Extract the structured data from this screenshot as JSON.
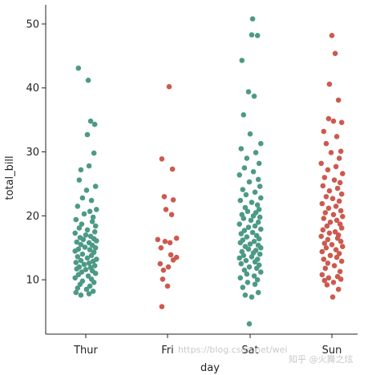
{
  "watermark": {
    "left": "https://blog.csdn.net/wei",
    "right": "知乎 @火舞之炫"
  },
  "colors": {
    "Thur": "#4c9a86",
    "Fri": "#cc5a4f",
    "Sat": "#4c9a86",
    "Sun": "#cc5a4f",
    "axis": "#222222"
  },
  "chart_data": {
    "type": "scatter",
    "xlabel": "day",
    "ylabel": "total_bill",
    "categories": [
      "Thur",
      "Fri",
      "Sat",
      "Sun"
    ],
    "ylim": [
      1.5,
      53
    ],
    "yticks": [
      10,
      20,
      30,
      40,
      50
    ],
    "grid": false,
    "legend": "none",
    "series": [
      {
        "category": "Thur",
        "values": [
          43.1,
          41.2,
          34.8,
          34.3,
          32.7,
          29.8,
          27.8,
          27.2,
          25.6,
          24.6,
          24.0,
          22.8,
          22.4,
          21.5,
          21.0,
          20.7,
          20.3,
          19.8,
          19.4,
          19.1,
          18.7,
          18.4,
          18.1,
          17.8,
          17.5,
          17.3,
          17.0,
          16.8,
          16.6,
          16.4,
          16.3,
          16.1,
          15.9,
          15.8,
          15.5,
          15.4,
          15.1,
          15.0,
          14.8,
          14.7,
          14.5,
          14.3,
          14.0,
          13.8,
          13.6,
          13.4,
          13.2,
          13.0,
          12.9,
          12.7,
          12.6,
          12.4,
          12.2,
          12.0,
          11.9,
          11.7,
          11.6,
          11.4,
          11.2,
          11.0,
          10.8,
          10.6,
          10.3,
          10.1,
          9.8,
          9.6,
          9.3,
          9.0,
          8.7,
          8.5,
          8.2,
          8.0,
          7.8,
          7.6
        ],
        "jitter": [
          -0.09,
          0.03,
          0.06,
          0.11,
          0.02,
          0.1,
          0.04,
          -0.06,
          -0.08,
          0.12,
          0.01,
          -0.04,
          0.07,
          -0.1,
          0.13,
          0.05,
          -0.02,
          0.09,
          -0.12,
          0.08,
          -0.05,
          0.12,
          -0.08,
          0.02,
          0.11,
          -0.13,
          0.0,
          0.06,
          -0.07,
          0.1,
          -0.03,
          0.13,
          -0.11,
          0.04,
          -0.06,
          0.08,
          -0.01,
          0.12,
          -0.09,
          0.05,
          -0.13,
          0.1,
          -0.04,
          0.07,
          -0.1,
          0.02,
          0.13,
          -0.06,
          0.09,
          -0.12,
          0.04,
          -0.02,
          0.11,
          -0.08,
          0.06,
          -0.11,
          0.0,
          0.08,
          -0.05,
          0.12,
          -0.09,
          0.03,
          -0.13,
          0.07,
          -0.04,
          0.1,
          -0.07,
          0.05,
          -0.1,
          0.01,
          0.09,
          -0.12,
          0.04,
          -0.06
        ]
      },
      {
        "category": "Fri",
        "values": [
          40.2,
          28.9,
          27.3,
          23.0,
          22.5,
          21.0,
          20.2,
          16.5,
          16.3,
          16.0,
          15.8,
          15.0,
          13.9,
          13.5,
          13.1,
          12.5,
          12.0,
          11.5,
          10.1,
          9.0,
          5.8
        ],
        "jitter": [
          0.02,
          -0.07,
          0.06,
          -0.04,
          0.07,
          -0.02,
          0.05,
          0.11,
          -0.12,
          -0.03,
          0.03,
          -0.08,
          0.04,
          0.11,
          0.07,
          -0.09,
          0.01,
          -0.05,
          -0.06,
          0.0,
          -0.07
        ]
      },
      {
        "category": "Sat",
        "values": [
          50.8,
          48.3,
          48.2,
          44.3,
          39.4,
          38.7,
          35.8,
          32.8,
          31.3,
          30.5,
          29.9,
          29.0,
          28.2,
          27.5,
          26.9,
          26.4,
          25.7,
          25.3,
          24.6,
          24.1,
          23.7,
          23.3,
          22.8,
          22.4,
          22.1,
          21.7,
          21.3,
          21.0,
          20.7,
          20.5,
          20.2,
          20.0,
          19.8,
          19.6,
          19.3,
          19.0,
          18.7,
          18.4,
          18.2,
          17.9,
          17.7,
          17.4,
          17.2,
          16.9,
          16.7,
          16.4,
          16.2,
          16.0,
          15.8,
          15.6,
          15.4,
          15.2,
          15.0,
          14.8,
          14.6,
          14.4,
          14.2,
          14.0,
          13.8,
          13.6,
          13.4,
          13.2,
          13.0,
          12.8,
          12.5,
          12.3,
          12.0,
          11.8,
          11.5,
          11.2,
          10.9,
          10.6,
          10.3,
          10.0,
          9.6,
          9.3,
          8.8,
          8.0,
          7.6,
          7.3,
          3.1
        ],
        "jitter": [
          0.03,
          0.02,
          0.09,
          -0.1,
          -0.02,
          0.05,
          -0.08,
          0.0,
          0.13,
          -0.11,
          0.07,
          -0.04,
          0.11,
          -0.07,
          0.04,
          -0.13,
          0.1,
          -0.01,
          0.12,
          -0.09,
          0.06,
          -0.05,
          0.13,
          -0.12,
          0.02,
          0.09,
          -0.06,
          0.11,
          -0.03,
          0.07,
          -0.1,
          0.04,
          0.12,
          -0.08,
          0.01,
          0.1,
          -0.13,
          0.06,
          -0.02,
          0.13,
          -0.07,
          0.03,
          -0.11,
          0.08,
          -0.04,
          0.11,
          -0.09,
          0.05,
          -0.12,
          0.0,
          0.1,
          -0.06,
          0.13,
          -0.02,
          0.07,
          -0.1,
          0.04,
          0.12,
          -0.08,
          0.02,
          -0.13,
          0.09,
          -0.05,
          0.06,
          -0.11,
          0.11,
          -0.01,
          0.08,
          -0.07,
          0.13,
          -0.04,
          0.05,
          -0.12,
          0.09,
          -0.03,
          0.06,
          -0.09,
          0.1,
          -0.06,
          0.02,
          -0.01
        ]
      },
      {
        "category": "Sun",
        "values": [
          48.2,
          45.4,
          40.6,
          38.1,
          35.2,
          34.8,
          34.6,
          33.2,
          32.4,
          31.3,
          30.1,
          29.9,
          29.0,
          28.2,
          27.7,
          27.2,
          26.6,
          26.0,
          25.6,
          25.2,
          24.7,
          24.3,
          23.9,
          23.4,
          23.0,
          22.7,
          22.3,
          21.9,
          21.5,
          21.2,
          20.8,
          20.5,
          20.2,
          19.9,
          19.6,
          19.3,
          19.0,
          18.7,
          18.4,
          18.1,
          17.8,
          17.5,
          17.3,
          17.0,
          16.8,
          16.5,
          16.3,
          16.0,
          15.7,
          15.5,
          15.2,
          15.0,
          14.7,
          14.4,
          14.1,
          13.8,
          13.5,
          13.2,
          12.9,
          12.6,
          12.2,
          11.8,
          11.3,
          10.8,
          10.5,
          10.3,
          10.1,
          9.9,
          9.6,
          9.2,
          8.5,
          7.3
        ],
        "jitter": [
          0.0,
          0.04,
          -0.03,
          0.08,
          -0.04,
          0.02,
          0.12,
          -0.1,
          0.06,
          -0.07,
          0.11,
          -0.01,
          0.09,
          -0.13,
          0.05,
          -0.05,
          0.13,
          -0.09,
          0.03,
          0.1,
          -0.11,
          0.07,
          -0.03,
          0.12,
          -0.07,
          0.01,
          0.09,
          -0.12,
          0.05,
          -0.04,
          0.11,
          -0.08,
          0.02,
          0.13,
          -0.1,
          0.06,
          -0.02,
          0.1,
          -0.06,
          0.12,
          -0.11,
          0.04,
          -0.03,
          0.08,
          -0.13,
          0.07,
          -0.05,
          0.11,
          -0.09,
          0.0,
          0.13,
          -0.07,
          0.05,
          -0.12,
          0.09,
          -0.02,
          0.06,
          -0.1,
          0.12,
          -0.05,
          0.03,
          -0.08,
          0.1,
          -0.12,
          0.07,
          -0.04,
          0.11,
          -0.09,
          0.02,
          -0.06,
          0.08,
          0.01
        ]
      }
    ]
  }
}
